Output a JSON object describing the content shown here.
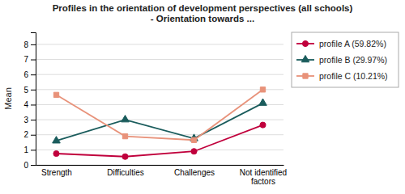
{
  "chart_data": {
    "type": "line",
    "title": "Profiles in the orientation of development perspectives (all schools)\n- Orientation towards ...",
    "y_label": "Mean",
    "categories": [
      "Strength",
      "Difficulties",
      "Challenges",
      "Not identified\nfactors"
    ],
    "series": [
      {
        "name": "profile A (59.82%)",
        "color": "#c0003c",
        "marker": "circle",
        "line_style": "solid",
        "values": [
          0.75,
          0.55,
          0.9,
          2.65
        ]
      },
      {
        "name": "profile B (29.97%)",
        "color": "#1a5c5c",
        "marker": "triangle",
        "line_style": "solid",
        "values": [
          1.6,
          3.0,
          1.75,
          4.1
        ]
      },
      {
        "name": "profile C (10.21%)",
        "color": "#e8927a",
        "marker": "square",
        "line_style": "solid",
        "values": [
          4.65,
          1.9,
          1.65,
          5.0
        ]
      }
    ],
    "ylim": [
      0,
      8.8
    ],
    "yticks": [
      0,
      1,
      2,
      3,
      4,
      5,
      6,
      7,
      8
    ],
    "grid": true,
    "legend": "right"
  }
}
